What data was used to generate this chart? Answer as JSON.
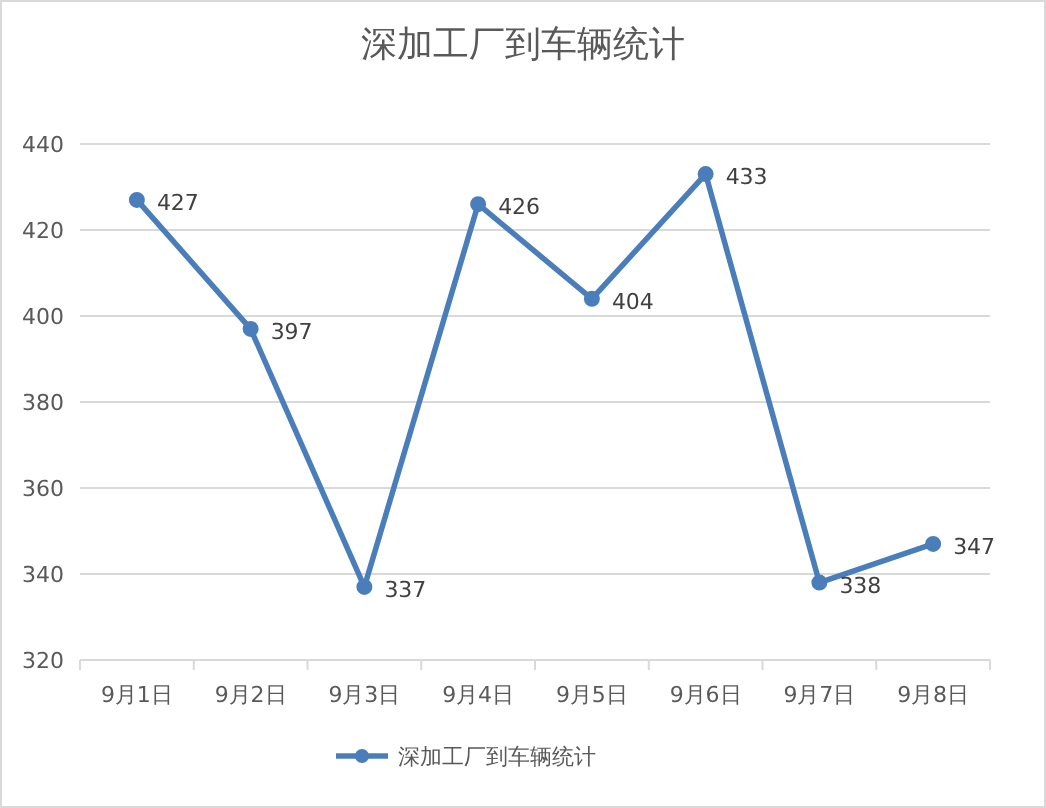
{
  "chart_data": {
    "type": "line",
    "title": "深加工厂到车辆统计",
    "categories": [
      "9月1日",
      "9月2日",
      "9月3日",
      "9月4日",
      "9月5日",
      "9月6日",
      "9月7日",
      "9月8日"
    ],
    "series": [
      {
        "name": "深加工厂到车辆统计",
        "color": "#4a7ebb",
        "values": [
          427,
          397,
          337,
          426,
          404,
          433,
          338,
          347
        ]
      }
    ],
    "ylim": [
      320,
      440
    ],
    "yticks": [
      320,
      340,
      360,
      380,
      400,
      420,
      440
    ],
    "grid": "y",
    "legend": "bottom",
    "marker": "circle",
    "line_style": "solid",
    "data_labels": true
  }
}
